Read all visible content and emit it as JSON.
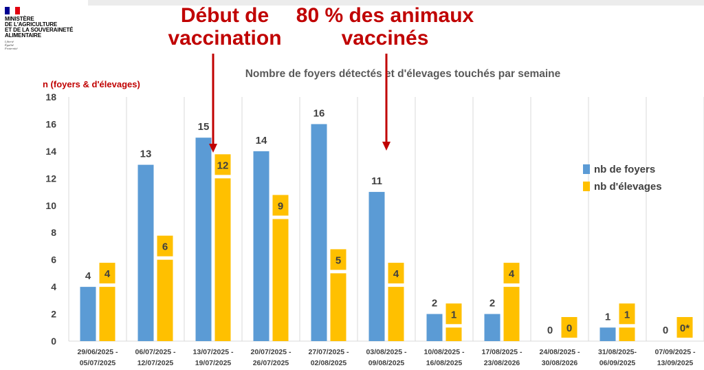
{
  "logo": {
    "flag_colors": [
      "#000091",
      "#ffffff",
      "#e1000f"
    ],
    "ministry": "MINISTÈRE\nDE L'AGRICULTURE\nET DE LA SOUVERAINETÉ\nALIMENTAIRE",
    "motto": "Liberté\nÉgalité\nFraternité"
  },
  "annotations": [
    {
      "line1": "Début de",
      "line2": "vaccination",
      "color": "#c00000",
      "arrow_at_category": "13/07/2025 - 19/07/2025"
    },
    {
      "line1": "80 % des animaux",
      "line2": "vaccinés",
      "color": "#c00000",
      "arrow_at_category": "03/08/2025 - 09/08/2025"
    }
  ],
  "chart_data": {
    "type": "bar",
    "title": "Nombre de foyers détectés et d'élevages touchés par semaine",
    "ylabel": "n (foyers & d'élevages)",
    "xlabel": "",
    "ylim": [
      0,
      18
    ],
    "yticks": [
      0,
      2,
      4,
      6,
      8,
      10,
      12,
      14,
      16,
      18
    ],
    "grid": "vertical",
    "legend_position": "right",
    "categories": [
      [
        "29/06/2025 -",
        "05/07/2025"
      ],
      [
        "06/07/2025 -",
        "12/07/2025"
      ],
      [
        "13/07/2025 -",
        "19/07/2025"
      ],
      [
        "20/07/2025 -",
        "26/07/2025"
      ],
      [
        "27/07/2025 -",
        "02/08/2025"
      ],
      [
        "03/08/2025 -",
        "09/08/2025"
      ],
      [
        "10/08/2025 -",
        "16/08/2025"
      ],
      [
        "17/08/2025 -",
        "23/08/2026"
      ],
      [
        "24/08/2025 -",
        "30/08/2026"
      ],
      [
        "31/08/2025-",
        "06/09/2025"
      ],
      [
        "07/09/2025 -",
        "13/09/2025"
      ]
    ],
    "series": [
      {
        "name": "nb de foyers",
        "color": "#5b9bd5",
        "values": [
          4,
          13,
          15,
          14,
          16,
          11,
          2,
          2,
          0,
          1,
          0
        ],
        "labels": [
          "4",
          "13",
          "15",
          "14",
          "16",
          "11",
          "2",
          "2",
          "0",
          "1",
          "0"
        ]
      },
      {
        "name": "nb  d'élevages",
        "color": "#ffc000",
        "values": [
          4,
          6,
          12,
          9,
          5,
          4,
          1,
          4,
          0,
          1,
          0
        ],
        "labels": [
          "4",
          "6",
          "12",
          "9",
          "5",
          "4",
          "1",
          "4",
          "0",
          "1",
          "0*"
        ]
      }
    ]
  }
}
